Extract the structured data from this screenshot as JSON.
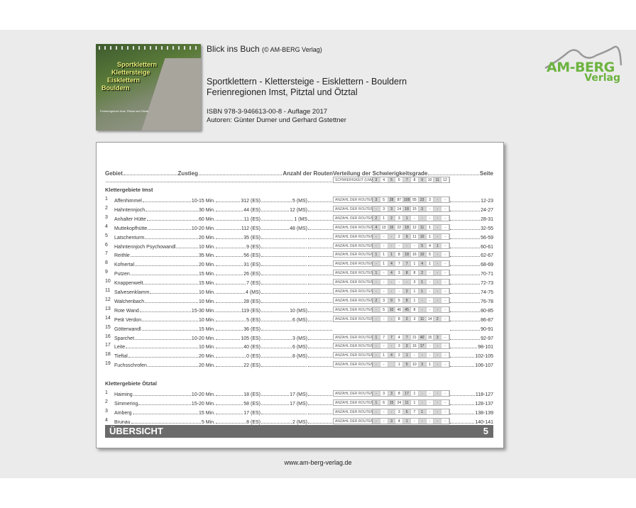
{
  "header": {
    "title": "Blick ins Buch",
    "copyright": "(© AM-BERG Verlag)",
    "book_title": "Sportklettern - Klettersteige - Eisklettern - Bouldern",
    "subtitle": "Ferienregionen Imst, Pitztal und Ötztal",
    "isbn": "ISBN 978-3-946613-00-8  -  Auflage 2017",
    "authors": "Autoren: Günter Durner und Gerhard Gstettner"
  },
  "cover": {
    "lines": [
      "Sportklettern",
      "Klettersteige",
      "Eisklettern",
      "Bouldern"
    ],
    "small": "Ferienregionen Imst, Pitztal und Ötztal"
  },
  "logo": {
    "name": "AM-BERG",
    "sub": "Verlag",
    "color": "#6cb33f"
  },
  "table": {
    "headers": {
      "gebiet": "Gebiet",
      "zustieg": "Zustieg",
      "routen": "Anzahl der Routen",
      "verteilung": "Verteilung der Schwierigkeitsgrade",
      "seite": "Seite"
    },
    "scale_label": "SCHWIERIGKEIT (UIAA)",
    "grades": [
      "3",
      "4",
      "5",
      "6",
      "7",
      "8",
      "9",
      "10",
      "11",
      "12"
    ],
    "row_label": "ANZAHL DER ROUTEN",
    "sections": [
      {
        "title": "Klettergebiete Imst",
        "rows": [
          {
            "n": "1",
            "name": "Affenhimmel",
            "zustieg": "10-15 Min.",
            "es": "312 (ES)",
            "ms": "5 (MS)",
            "dist": [
              "3",
              "5",
              "28",
              "87",
              "108",
              "55",
              "23",
              "3",
              "-",
              "-"
            ],
            "seite": "12-23"
          },
          {
            "n": "2",
            "name": "Hahntennjoch",
            "zustieg": "30 Min.",
            "es": "44 (ES)",
            "ms": "12 (MS)",
            "dist": [
              "-",
              "3",
              "3",
              "14",
              "18",
              "15",
              "3",
              "-",
              "-",
              "-"
            ],
            "seite": "24-27"
          },
          {
            "n": "3",
            "name": "Anhalter Hütte",
            "zustieg": "60 Min.",
            "es": "11 (ES)",
            "ms": "1 (MS",
            "dist": [
              "2",
              "1",
              "2",
              "3",
              "1",
              "-",
              "-",
              "-",
              "-",
              "-"
            ],
            "seite": "28-31"
          },
          {
            "n": "4",
            "name": "Muttekopfhütte",
            "zustieg": "10-20 Min.",
            "es": "112 (ES)",
            "ms": "48 (MS)",
            "dist": [
              "4",
              "13",
              "16",
              "22",
              "18",
              "12",
              "11",
              "1",
              "-",
              "-"
            ],
            "seite": "32-55"
          },
          {
            "n": "5",
            "name": "Latschenturm",
            "zustieg": "20 Min.",
            "es": "35 (ES)",
            "ms": "",
            "dist": [
              "-",
              "-",
              "-",
              "2",
              "9",
              "11",
              "10",
              "1",
              "-",
              "-"
            ],
            "seite": "56-59"
          },
          {
            "n": "6",
            "name": "Hahntennjoch Psychowandl",
            "zustieg": "10 Min.",
            "es": "9 (ES)",
            "ms": "",
            "dist": [
              "-",
              "-",
              "-",
              "-",
              "-",
              "-",
              "5",
              "4",
              "1",
              "-"
            ],
            "seite": "60-61"
          },
          {
            "n": "7",
            "name": "Reithle",
            "zustieg": "35 Min.",
            "es": "56 (ES)",
            "ms": "",
            "dist": [
              "1",
              "1",
              "1",
              "8",
              "18",
              "16",
              "10",
              "5",
              "-",
              "-"
            ],
            "seite": "62-67"
          },
          {
            "n": "8",
            "name": "Kofnertal",
            "zustieg": "20 Min.",
            "es": "31 (ES)",
            "ms": "",
            "dist": [
              "-",
              "1",
              "4",
              "7",
              "7",
              "1",
              "4",
              "1",
              "-",
              "-"
            ],
            "seite": "68-69"
          },
          {
            "n": "9",
            "name": "Putzen",
            "zustieg": "15 Min.",
            "es": "26 (ES)",
            "ms": "",
            "dist": [
              "1",
              "-",
              "4",
              "3",
              "8",
              "8",
              "2",
              "-",
              "-",
              "-"
            ],
            "seite": "70-71"
          },
          {
            "n": "10",
            "name": "Knappenwelt",
            "zustieg": "15 Min.",
            "es": "7 (ES)",
            "ms": "",
            "dist": [
              "-",
              "-",
              "-",
              "-",
              "-",
              "3",
              "1",
              "-",
              "-",
              "-"
            ],
            "seite": "72-73"
          },
          {
            "n": "11",
            "name": "Salvesenklamm",
            "zustieg": "10 Min.",
            "es": "4 (MS)",
            "ms": "",
            "dist": [
              "-",
              "-",
              "-",
              "-",
              "2",
              "1",
              "1",
              "-",
              "-",
              "-"
            ],
            "seite": "74-75"
          },
          {
            "n": "12",
            "name": "Walchenbach",
            "zustieg": "10 Min.",
            "es": "28 (ES)",
            "ms": "",
            "dist": [
              "2",
              "3",
              "9",
              "5",
              "8",
              "1",
              "-",
              "-",
              "-",
              "-"
            ],
            "seite": "76-78"
          },
          {
            "n": "13",
            "name": "Rote Wand",
            "zustieg": "15-30 Min.",
            "es": "119 (ES)",
            "ms": "10 (MS)",
            "dist": [
              "-",
              "5",
              "10",
              "46",
              "45",
              "8",
              "-",
              "-",
              "-",
              "-"
            ],
            "seite": "80-85"
          },
          {
            "n": "14",
            "name": "Petit Verdon",
            "zustieg": "10 Min.",
            "es": "5 (ES)",
            "ms": "6 (MS)",
            "dist": [
              "-",
              "-",
              "-",
              "8",
              "2",
              "3",
              "11",
              "14",
              "2",
              "-"
            ],
            "seite": "86-87"
          },
          {
            "n": "15",
            "name": "Götterwandl",
            "zustieg": "15 Min.",
            "es": "36 (ES)",
            "ms": "",
            "dist": [],
            "seite": "90-91"
          },
          {
            "n": "16",
            "name": "Sparchet",
            "zustieg": "10-20 Min.",
            "es": "105 (ES)",
            "ms": "3 (MS)",
            "dist": [
              "1",
              "7",
              "7",
              "4",
              "7",
              "21",
              "40",
              "15",
              "3",
              "-"
            ],
            "seite": "92-97"
          },
          {
            "n": "17",
            "name": "Leite",
            "zustieg": "10 Min.",
            "es": "40 (ES)",
            "ms": "6 (MS)",
            "dist": [
              "-",
              "-",
              "-",
              "3",
              "3",
              "16",
              "17",
              "-",
              "-",
              "-"
            ],
            "seite": "98-101"
          },
          {
            "n": "18",
            "name": "Tieftal",
            "zustieg": "20 Min.",
            "es": "0 (ES)",
            "ms": "8 (MS)",
            "dist": [
              "-",
              "1",
              "4",
              "2",
              "1",
              "-",
              "-",
              "-",
              "-",
              "-"
            ],
            "seite": "102-105"
          },
          {
            "n": "19",
            "name": "Fuchsschrofen",
            "zustieg": "20 Min.",
            "es": "22 (ES)",
            "ms": "",
            "dist": [
              "-",
              "-",
              "",
              "1",
              "5",
              "10",
              "3",
              "1",
              "-",
              "-"
            ],
            "seite": "106-107"
          }
        ]
      },
      {
        "title": "Klettergebiete Ötztal",
        "rows": [
          {
            "n": "1",
            "name": "Haiming",
            "zustieg": "10-20 Min.",
            "es": "18 (ES)",
            "ms": "17 (MS)",
            "dist": [
              "-",
              "3",
              "3",
              "8",
              "17",
              "1",
              "-",
              "-",
              "-",
              "-"
            ],
            "seite": "118-127"
          },
          {
            "n": "2",
            "name": "Simmering",
            "zustieg": "15-20 Min.",
            "es": "58 (ES)",
            "ms": "17 (MS)",
            "dist": [
              "1",
              "6",
              "15",
              "24",
              "11",
              "1",
              "-",
              "-",
              "-",
              "-"
            ],
            "seite": "128-137"
          },
          {
            "n": "3",
            "name": "Amberg",
            "zustieg": "15 Min.",
            "es": "17 (ES)",
            "ms": "",
            "dist": [
              "-",
              "-",
              "-",
              "3",
              "6",
              "7",
              "1",
              "-",
              "-",
              "-"
            ],
            "seite": "138-139"
          },
          {
            "n": "4",
            "name": "Brunau",
            "zustieg": "5 Min.",
            "es": "8 (ES)",
            "ms": "2 (MS)",
            "dist": [
              "-",
              "-",
              "3",
              "4",
              "1",
              "-",
              "-",
              "-",
              "-",
              "-"
            ],
            "seite": "140-141"
          }
        ]
      }
    ]
  },
  "footer": {
    "section": "ÜBERSICHT",
    "page_number": "5",
    "url": "www.am-berg-verlag.de"
  }
}
